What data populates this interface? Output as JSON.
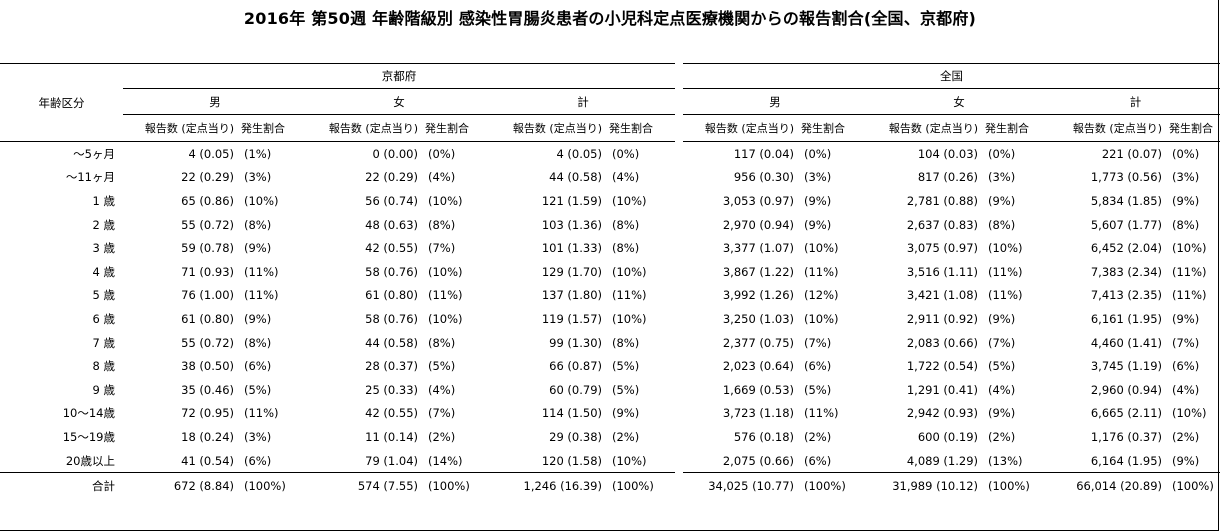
{
  "title": "2016年 第50週 年齢階級別 感染性胃腸炎患者の小児科定点医療機関からの報告割合(全国、京都府)",
  "row_header": "年齢区分",
  "regions": [
    "京都府",
    "全国"
  ],
  "sexes": [
    "男",
    "女",
    "計"
  ],
  "subheaders": {
    "count": "報告数 (定点当り)",
    "rate": "発生割合"
  },
  "rows": [
    {
      "age": "～5ヶ月",
      "cells": [
        [
          "4 (0.05)",
          "(1%)"
        ],
        [
          "0 (0.00)",
          "(0%)"
        ],
        [
          "4 (0.05)",
          "(0%)"
        ],
        [
          "117 (0.04)",
          "(0%)"
        ],
        [
          "104 (0.03)",
          "(0%)"
        ],
        [
          "221 (0.07)",
          "(0%)"
        ]
      ]
    },
    {
      "age": "～11ヶ月",
      "cells": [
        [
          "22 (0.29)",
          "(3%)"
        ],
        [
          "22 (0.29)",
          "(4%)"
        ],
        [
          "44 (0.58)",
          "(4%)"
        ],
        [
          "956 (0.30)",
          "(3%)"
        ],
        [
          "817 (0.26)",
          "(3%)"
        ],
        [
          "1,773 (0.56)",
          "(3%)"
        ]
      ]
    },
    {
      "age": "1 歳",
      "cells": [
        [
          "65 (0.86)",
          "(10%)"
        ],
        [
          "56 (0.74)",
          "(10%)"
        ],
        [
          "121 (1.59)",
          "(10%)"
        ],
        [
          "3,053 (0.97)",
          "(9%)"
        ],
        [
          "2,781 (0.88)",
          "(9%)"
        ],
        [
          "5,834 (1.85)",
          "(9%)"
        ]
      ]
    },
    {
      "age": "2 歳",
      "cells": [
        [
          "55 (0.72)",
          "(8%)"
        ],
        [
          "48 (0.63)",
          "(8%)"
        ],
        [
          "103 (1.36)",
          "(8%)"
        ],
        [
          "2,970 (0.94)",
          "(9%)"
        ],
        [
          "2,637 (0.83)",
          "(8%)"
        ],
        [
          "5,607 (1.77)",
          "(8%)"
        ]
      ]
    },
    {
      "age": "3 歳",
      "cells": [
        [
          "59 (0.78)",
          "(9%)"
        ],
        [
          "42 (0.55)",
          "(7%)"
        ],
        [
          "101 (1.33)",
          "(8%)"
        ],
        [
          "3,377 (1.07)",
          "(10%)"
        ],
        [
          "3,075 (0.97)",
          "(10%)"
        ],
        [
          "6,452 (2.04)",
          "(10%)"
        ]
      ]
    },
    {
      "age": "4 歳",
      "cells": [
        [
          "71 (0.93)",
          "(11%)"
        ],
        [
          "58 (0.76)",
          "(10%)"
        ],
        [
          "129 (1.70)",
          "(10%)"
        ],
        [
          "3,867 (1.22)",
          "(11%)"
        ],
        [
          "3,516 (1.11)",
          "(11%)"
        ],
        [
          "7,383 (2.34)",
          "(11%)"
        ]
      ]
    },
    {
      "age": "5 歳",
      "cells": [
        [
          "76 (1.00)",
          "(11%)"
        ],
        [
          "61 (0.80)",
          "(11%)"
        ],
        [
          "137 (1.80)",
          "(11%)"
        ],
        [
          "3,992 (1.26)",
          "(12%)"
        ],
        [
          "3,421 (1.08)",
          "(11%)"
        ],
        [
          "7,413 (2.35)",
          "(11%)"
        ]
      ]
    },
    {
      "age": "6 歳",
      "cells": [
        [
          "61 (0.80)",
          "(9%)"
        ],
        [
          "58 (0.76)",
          "(10%)"
        ],
        [
          "119 (1.57)",
          "(10%)"
        ],
        [
          "3,250 (1.03)",
          "(10%)"
        ],
        [
          "2,911 (0.92)",
          "(9%)"
        ],
        [
          "6,161 (1.95)",
          "(9%)"
        ]
      ]
    },
    {
      "age": "7 歳",
      "cells": [
        [
          "55 (0.72)",
          "(8%)"
        ],
        [
          "44 (0.58)",
          "(8%)"
        ],
        [
          "99 (1.30)",
          "(8%)"
        ],
        [
          "2,377 (0.75)",
          "(7%)"
        ],
        [
          "2,083 (0.66)",
          "(7%)"
        ],
        [
          "4,460 (1.41)",
          "(7%)"
        ]
      ]
    },
    {
      "age": "8 歳",
      "cells": [
        [
          "38 (0.50)",
          "(6%)"
        ],
        [
          "28 (0.37)",
          "(5%)"
        ],
        [
          "66 (0.87)",
          "(5%)"
        ],
        [
          "2,023 (0.64)",
          "(6%)"
        ],
        [
          "1,722 (0.54)",
          "(5%)"
        ],
        [
          "3,745 (1.19)",
          "(6%)"
        ]
      ]
    },
    {
      "age": "9 歳",
      "cells": [
        [
          "35 (0.46)",
          "(5%)"
        ],
        [
          "25 (0.33)",
          "(4%)"
        ],
        [
          "60 (0.79)",
          "(5%)"
        ],
        [
          "1,669 (0.53)",
          "(5%)"
        ],
        [
          "1,291 (0.41)",
          "(4%)"
        ],
        [
          "2,960 (0.94)",
          "(4%)"
        ]
      ]
    },
    {
      "age": "10～14歳",
      "cells": [
        [
          "72 (0.95)",
          "(11%)"
        ],
        [
          "42 (0.55)",
          "(7%)"
        ],
        [
          "114 (1.50)",
          "(9%)"
        ],
        [
          "3,723 (1.18)",
          "(11%)"
        ],
        [
          "2,942 (0.93)",
          "(9%)"
        ],
        [
          "6,665 (2.11)",
          "(10%)"
        ]
      ]
    },
    {
      "age": "15～19歳",
      "cells": [
        [
          "18 (0.24)",
          "(3%)"
        ],
        [
          "11 (0.14)",
          "(2%)"
        ],
        [
          "29 (0.38)",
          "(2%)"
        ],
        [
          "576 (0.18)",
          "(2%)"
        ],
        [
          "600 (0.19)",
          "(2%)"
        ],
        [
          "1,176 (0.37)",
          "(2%)"
        ]
      ]
    },
    {
      "age": "20歳以上",
      "cells": [
        [
          "41 (0.54)",
          "(6%)"
        ],
        [
          "79 (1.04)",
          "(14%)"
        ],
        [
          "120 (1.58)",
          "(10%)"
        ],
        [
          "2,075 (0.66)",
          "(6%)"
        ],
        [
          "4,089 (1.29)",
          "(13%)"
        ],
        [
          "6,164 (1.95)",
          "(9%)"
        ]
      ]
    }
  ],
  "total": {
    "label": "合計",
    "cells": [
      [
        "672 (8.84)",
        "(100%)"
      ],
      [
        "574 (7.55)",
        "(100%)"
      ],
      [
        "1,246 (16.39)",
        "(100%)"
      ],
      [
        "34,025 (10.77)",
        "(100%)"
      ],
      [
        "31,989 (10.12)",
        "(100%)"
      ],
      [
        "66,014 (20.89)",
        "(100%)"
      ]
    ]
  }
}
